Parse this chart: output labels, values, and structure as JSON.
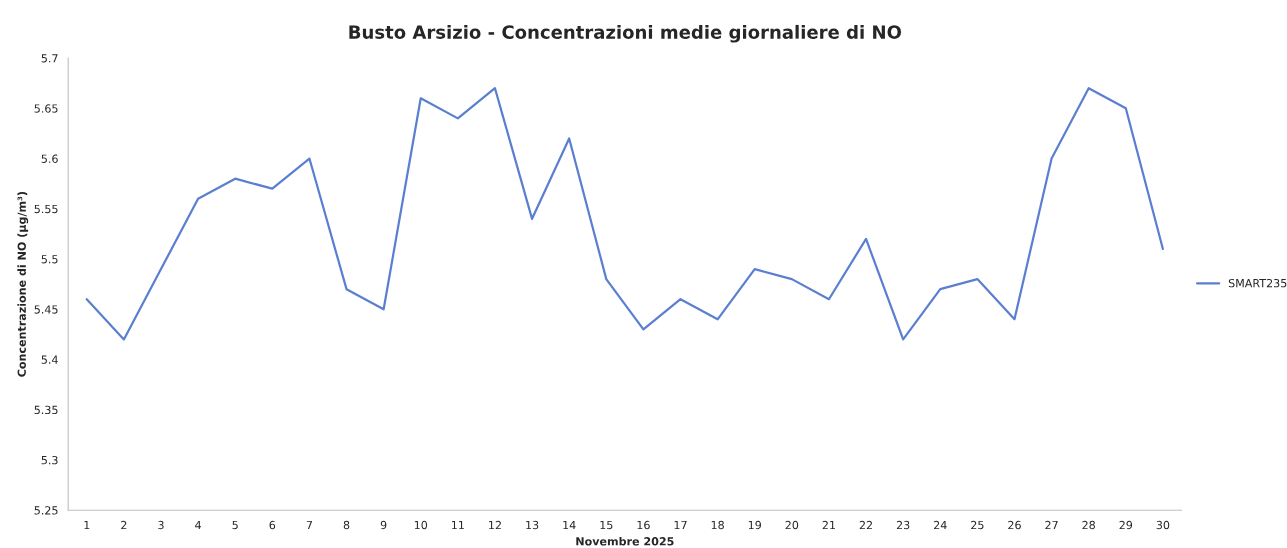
{
  "chart_data": {
    "type": "line",
    "title": "Busto Arsizio - Concentrazioni medie giornaliere di NO",
    "xlabel": "Novembre 2025",
    "ylabel": "Concentrazione di NO (µg/m³)",
    "categories": [
      "1",
      "2",
      "3",
      "4",
      "5",
      "6",
      "7",
      "8",
      "9",
      "10",
      "11",
      "12",
      "13",
      "14",
      "15",
      "16",
      "17",
      "18",
      "19",
      "20",
      "21",
      "22",
      "23",
      "24",
      "25",
      "26",
      "27",
      "28",
      "29",
      "30"
    ],
    "series": [
      {
        "name": "SMART235",
        "color": "#5b7fd0",
        "values": [
          5.46,
          5.42,
          5.49,
          5.56,
          5.58,
          5.57,
          5.6,
          5.47,
          5.45,
          5.66,
          5.64,
          5.67,
          5.54,
          5.62,
          5.48,
          5.43,
          5.46,
          5.44,
          5.49,
          5.48,
          5.46,
          5.52,
          5.42,
          5.47,
          5.48,
          5.44,
          5.6,
          5.67,
          5.65,
          5.51
        ]
      }
    ],
    "ylim": [
      5.25,
      5.7
    ],
    "yticks": [
      5.25,
      5.3,
      5.35,
      5.4,
      5.45,
      5.5,
      5.55,
      5.6,
      5.65,
      5.7
    ],
    "grid": false,
    "legend": "right",
    "marker": "none",
    "line_style": "solid"
  }
}
